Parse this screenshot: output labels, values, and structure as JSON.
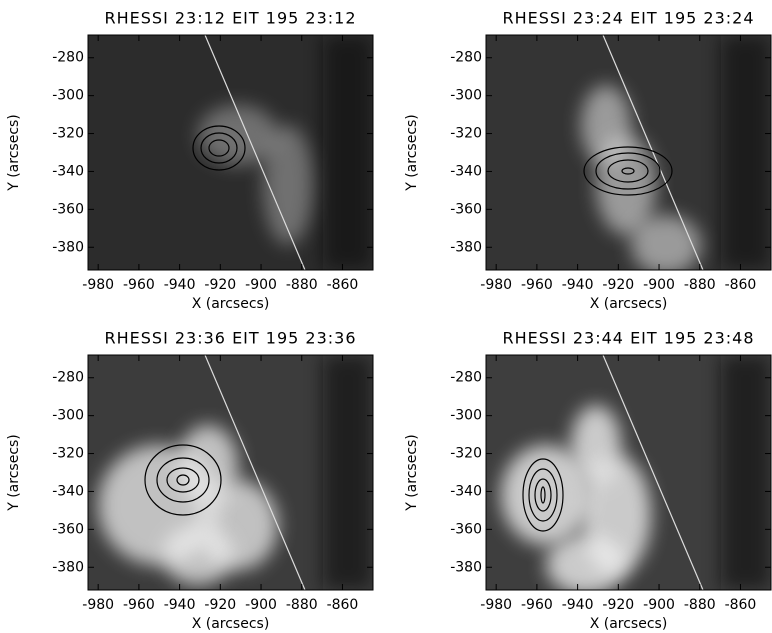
{
  "chart_data": [
    {
      "type": "image",
      "title": "RHESSI 23:12 EIT 195 23:12",
      "xlabel": "X (arcsecs)",
      "ylabel": "Y (arcsecs)",
      "xlim": [
        -985,
        -845
      ],
      "ylim": [
        -392,
        -268
      ],
      "xticks": [
        -980,
        -960,
        -940,
        -920,
        -900,
        -880,
        -860
      ],
      "yticks": [
        -380,
        -360,
        -340,
        -320,
        -300,
        -280
      ]
    },
    {
      "type": "image",
      "title": "RHESSI 23:24 EIT 195 23:24",
      "xlabel": "X (arcsecs)",
      "ylabel": "Y (arcsecs)",
      "xlim": [
        -985,
        -845
      ],
      "ylim": [
        -392,
        -268
      ],
      "xticks": [
        -980,
        -960,
        -940,
        -920,
        -900,
        -880,
        -860
      ],
      "yticks": [
        -380,
        -360,
        -340,
        -320,
        -300,
        -280
      ]
    },
    {
      "type": "image",
      "title": "RHESSI 23:36 EIT 195 23:36",
      "xlabel": "X (arcsecs)",
      "ylabel": "Y (arcsecs)",
      "xlim": [
        -985,
        -845
      ],
      "ylim": [
        -392,
        -268
      ],
      "xticks": [
        -980,
        -960,
        -940,
        -920,
        -900,
        -880,
        -860
      ],
      "yticks": [
        -380,
        -360,
        -340,
        -320,
        -300,
        -280
      ]
    },
    {
      "type": "image",
      "title": "RHESSI 23:44 EIT 195 23:48",
      "xlabel": "X (arcsecs)",
      "ylabel": "Y (arcsecs)",
      "xlim": [
        -985,
        -845
      ],
      "ylim": [
        -392,
        -268
      ],
      "xticks": [
        -980,
        -960,
        -940,
        -920,
        -900,
        -880,
        -860
      ],
      "yticks": [
        -380,
        -360,
        -340,
        -320,
        -300,
        -280
      ]
    }
  ]
}
